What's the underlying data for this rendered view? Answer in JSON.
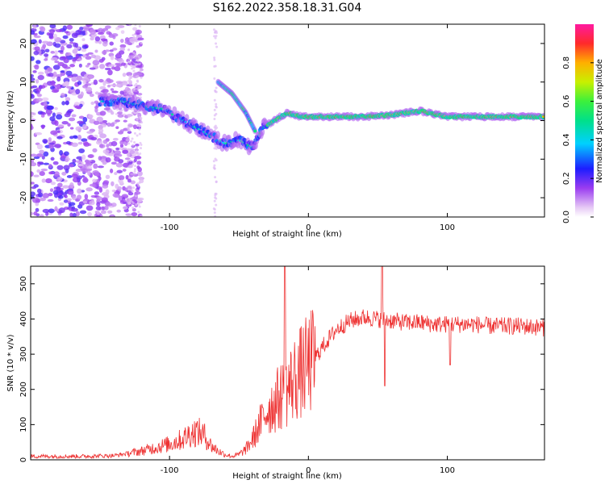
{
  "title": "S162.2022.358.18.31.G04",
  "chart_data": [
    {
      "type": "heatmap",
      "xlabel": "Height of straight line (km)",
      "ylabel": "Frequency (Hz)",
      "xlim": [
        -200,
        170
      ],
      "ylim": [
        -25,
        25
      ],
      "x_ticks": [
        -100,
        0,
        100
      ],
      "y_ticks": [
        -20,
        -10,
        0,
        10,
        20
      ],
      "colorbar": {
        "label": "Normalized spectral amplitude",
        "range": [
          0,
          1
        ],
        "ticks": [
          0.0,
          0.2,
          0.4,
          0.6,
          0.8
        ],
        "colormap": "rainbow (white-purple-blue-cyan-green-yellow-red)"
      },
      "ridge": {
        "description_free_values": true,
        "x": [
          -135,
          -120,
          -105,
          -90,
          -80,
          -70,
          -60,
          -50,
          -40,
          -33,
          -25,
          -15,
          -5,
          0,
          20,
          40,
          60,
          80,
          100,
          120,
          150,
          170
        ],
        "y": [
          5,
          4,
          3,
          0,
          -2,
          -4,
          -6,
          -5,
          -7,
          -2,
          0,
          2,
          1,
          1,
          1,
          1,
          1.5,
          2.5,
          1,
          1,
          1,
          1
        ]
      },
      "branch": {
        "x": [
          -65,
          -55,
          -45,
          -38
        ],
        "y": [
          10,
          7,
          2,
          -3
        ]
      }
    },
    {
      "type": "line",
      "xlabel": "Height of straight line (km)",
      "ylabel": "SNR (10 * v/v)",
      "xlim": [
        -200,
        170
      ],
      "ylim": [
        0,
        550
      ],
      "x_ticks": [
        -100,
        0,
        100
      ],
      "y_ticks": [
        0,
        100,
        200,
        300,
        400,
        500
      ],
      "color": "#ee3333",
      "series": [
        {
          "x": [
            -200,
            -180,
            -160,
            -140,
            -130,
            -120,
            -110,
            -100,
            -90,
            -85,
            -80,
            -75,
            -70,
            -65,
            -60,
            -55,
            -50,
            -45,
            -40,
            -35,
            -30,
            -25,
            -20,
            -15,
            -10,
            -5,
            0,
            5,
            10,
            20,
            30,
            40,
            50,
            60,
            70,
            80,
            90,
            100,
            110,
            120,
            130,
            140,
            150,
            160,
            170
          ],
          "values": [
            10,
            10,
            10,
            12,
            18,
            25,
            35,
            45,
            60,
            75,
            80,
            70,
            40,
            25,
            15,
            10,
            15,
            30,
            60,
            100,
            140,
            160,
            180,
            200,
            230,
            250,
            270,
            290,
            320,
            370,
            395,
            405,
            400,
            395,
            390,
            390,
            385,
            385,
            385,
            385,
            380,
            380,
            380,
            378,
            375
          ]
        }
      ],
      "spikes": [
        {
          "x": -17,
          "y": 550
        },
        {
          "x": 53,
          "y": 550
        },
        {
          "x": 55,
          "y": 210
        },
        {
          "x": 102,
          "y": 270
        }
      ]
    }
  ]
}
